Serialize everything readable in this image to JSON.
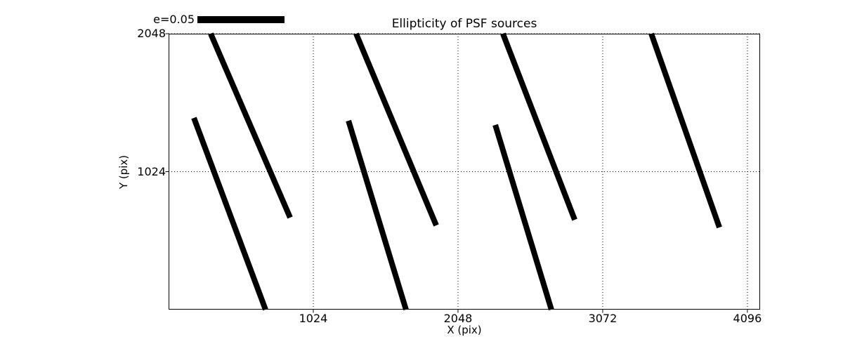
{
  "figure": {
    "background": "#ffffff",
    "axis_color": "#000000"
  },
  "legend": {
    "label": "e=0.05",
    "bar_color": "#000000"
  },
  "chart_data": {
    "type": "whisker",
    "title": "Ellipticity of PSF sources",
    "xlabel": "X (pix)",
    "ylabel": "Y (pix)",
    "xlim": [
      0,
      4186
    ],
    "ylim": [
      0,
      2048
    ],
    "xticks": [
      1024,
      2048,
      3072,
      4096
    ],
    "yticks": [
      1024,
      2048
    ],
    "grid": "dotted",
    "legend": {
      "label": "e=0.05",
      "position": "upper-left-outside"
    },
    "series_color": "#000000",
    "whisker_stroke_px": 8,
    "segments": [
      {
        "x1": 298,
        "y1": 2048,
        "x2": 860,
        "y2": 683
      },
      {
        "x1": 179,
        "y1": 1423,
        "x2": 686,
        "y2": 0
      },
      {
        "x1": 1327,
        "y1": 2048,
        "x2": 1894,
        "y2": 625
      },
      {
        "x1": 1273,
        "y1": 1402,
        "x2": 1680,
        "y2": 0
      },
      {
        "x1": 2366,
        "y1": 2048,
        "x2": 2874,
        "y2": 667
      },
      {
        "x1": 2312,
        "y1": 1371,
        "x2": 2709,
        "y2": 0
      },
      {
        "x1": 3416,
        "y1": 2048,
        "x2": 3898,
        "y2": 610
      }
    ]
  }
}
